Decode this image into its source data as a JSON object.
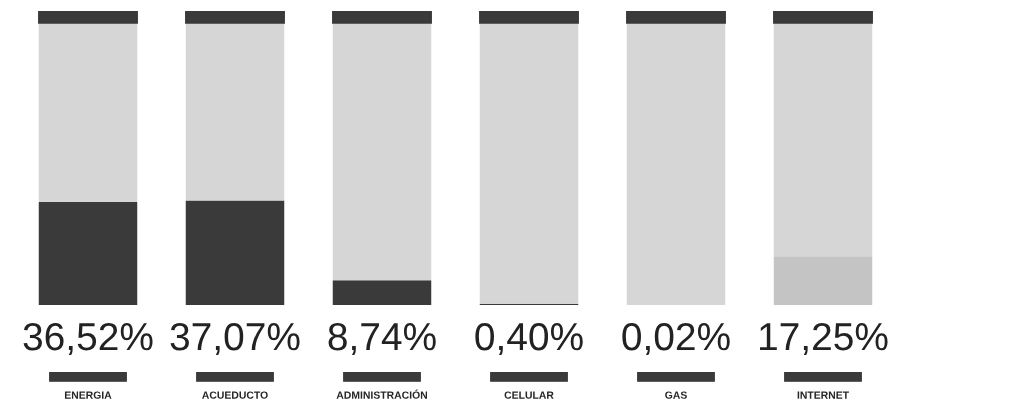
{
  "chart_data": {
    "type": "bar",
    "stacked": true,
    "categories": [
      "ENERGIA",
      "ACUEDUCTO",
      "ADMINISTRACIÓN",
      "CELULAR",
      "GAS",
      "INTERNET"
    ],
    "series": [
      {
        "colors": [
          "#3a3a3a",
          "#3a3a3a",
          "#3a3a3a",
          "#3a3a3a",
          "#3a3a3a",
          "#c4c4c4"
        ],
        "values": [
          36.52,
          37.07,
          8.74,
          0.4,
          0.02,
          17.25
        ],
        "value_labels": [
          "36,52%",
          "37,07%",
          "8,74%",
          "0,40%",
          "0,02%",
          "17,25%"
        ]
      },
      {
        "color": "#d6d6d6",
        "values": [
          63.48,
          62.93,
          91.26,
          99.6,
          99.98,
          82.75
        ]
      }
    ],
    "ylim": [
      0,
      100
    ],
    "grid": false,
    "legend": false
  }
}
